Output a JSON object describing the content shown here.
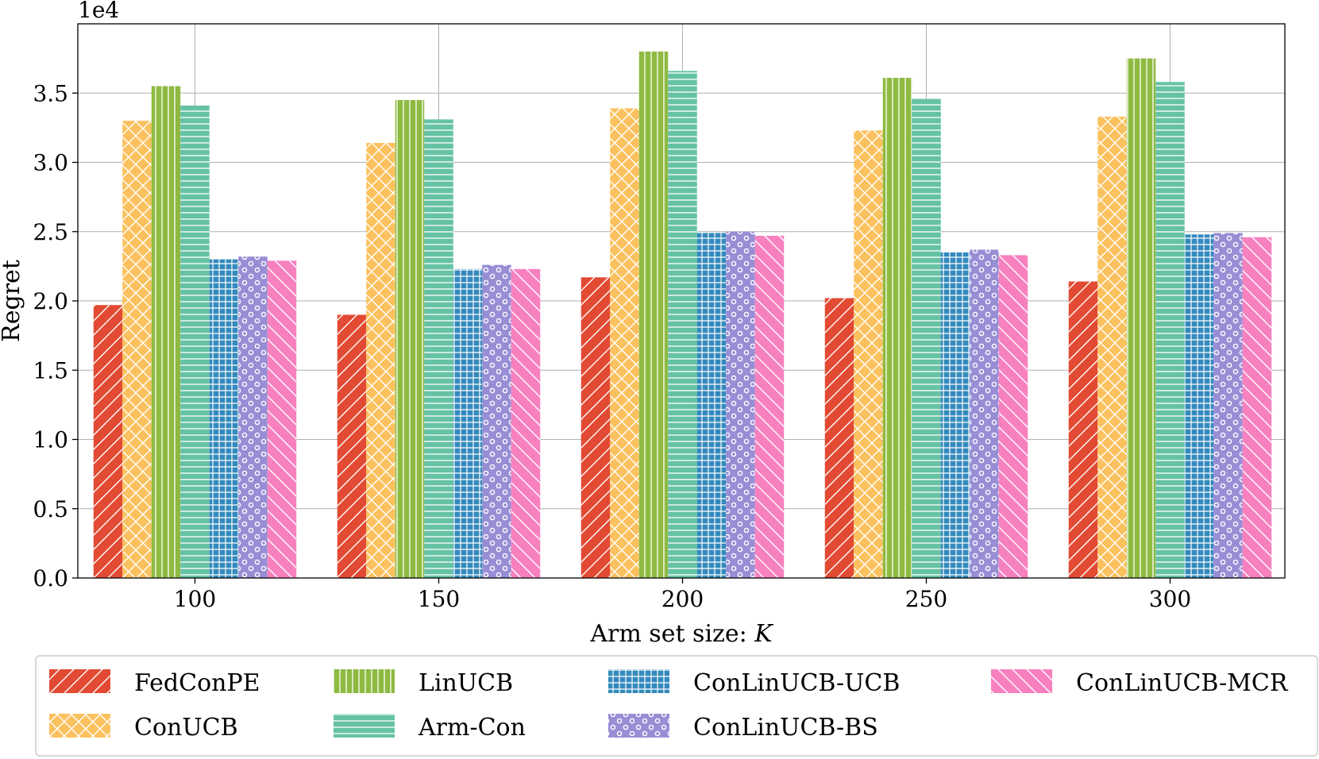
{
  "chart_data": {
    "type": "bar",
    "title": "",
    "xlabel": "Arm set size: ",
    "xlabel_var": "K",
    "ylabel": "Regret",
    "y_multiplier": "1e4",
    "ylim": [
      0,
      4.0
    ],
    "yticks": [
      0.0,
      0.5,
      1.0,
      1.5,
      2.0,
      2.5,
      3.0,
      3.5
    ],
    "ytick_labels": [
      "0.0",
      "0.5",
      "1.0",
      "1.5",
      "2.0",
      "2.5",
      "3.0",
      "3.5"
    ],
    "categories": [
      "100",
      "150",
      "200",
      "250",
      "300"
    ],
    "grid": true,
    "legend_position": "bottom",
    "series": [
      {
        "name": "FedConPE",
        "color": "#e24a33",
        "hatch": "diag",
        "values": [
          1.97,
          1.9,
          2.17,
          2.02,
          2.14
        ]
      },
      {
        "name": "ConUCB",
        "color": "#fbc15e",
        "hatch": "cross",
        "values": [
          3.3,
          3.14,
          3.39,
          3.23,
          3.33
        ]
      },
      {
        "name": "LinUCB",
        "color": "#8eba42",
        "hatch": "vert",
        "values": [
          3.55,
          3.45,
          3.8,
          3.61,
          3.75
        ]
      },
      {
        "name": "Arm-Con",
        "color": "#66c2a5",
        "hatch": "horiz",
        "values": [
          3.41,
          3.31,
          3.66,
          3.46,
          3.58
        ]
      },
      {
        "name": "ConLinUCB-UCB",
        "color": "#348abd",
        "hatch": "grid",
        "values": [
          2.3,
          2.23,
          2.49,
          2.35,
          2.48
        ]
      },
      {
        "name": "ConLinUCB-BS",
        "color": "#988ed5",
        "hatch": "circles",
        "values": [
          2.32,
          2.26,
          2.5,
          2.37,
          2.49
        ]
      },
      {
        "name": "ConLinUCB-MCR",
        "color": "#f781bf",
        "hatch": "backdiag",
        "values": [
          2.29,
          2.23,
          2.47,
          2.33,
          2.46
        ]
      }
    ]
  }
}
